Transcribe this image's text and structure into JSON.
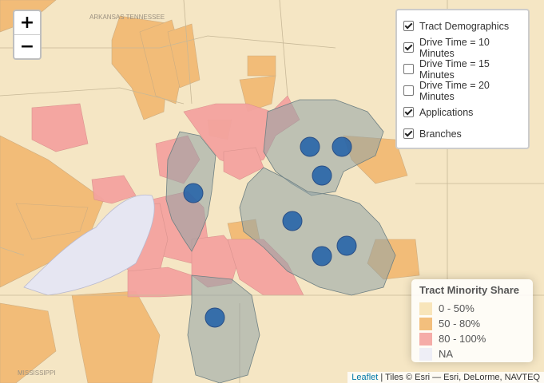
{
  "zoom": {
    "in_label": "+",
    "out_label": "−"
  },
  "layers": [
    {
      "label": "Tract Demographics",
      "checked": true
    },
    {
      "label": "Drive Time = 10 Minutes",
      "checked": true
    },
    {
      "label": "Drive Time = 15 Minutes",
      "checked": false
    },
    {
      "label": "Drive Time = 20 Minutes",
      "checked": false
    },
    {
      "label": "Applications",
      "checked": true
    },
    {
      "label": "Branches",
      "checked": true
    }
  ],
  "legend": {
    "title": "Tract Minority Share",
    "items": [
      {
        "label": "0 - 50%",
        "color": "#f7e2b4"
      },
      {
        "label": "50 - 80%",
        "color": "#f2b870"
      },
      {
        "label": "80 - 100%",
        "color": "#f4a3a0"
      },
      {
        "label": "NA",
        "color": "#ececf6"
      }
    ]
  },
  "attribution": {
    "link": "Leaflet",
    "text": " | Tiles © Esri — Esri, DeLorme, NAVTEQ"
  },
  "map_labels": {
    "top_small": "ARKANSAS  TENNESSEE",
    "bottom_small": "MISSISSIPPI"
  },
  "colors": {
    "base": "#f5e6c4",
    "tract_low": "#f7e2b4",
    "tract_mid": "#f2b870",
    "tract_high": "#f4a3a0",
    "river": "#e6e6f2",
    "drive_time": "#8fa3a6",
    "branch": "#1f5fa8"
  }
}
